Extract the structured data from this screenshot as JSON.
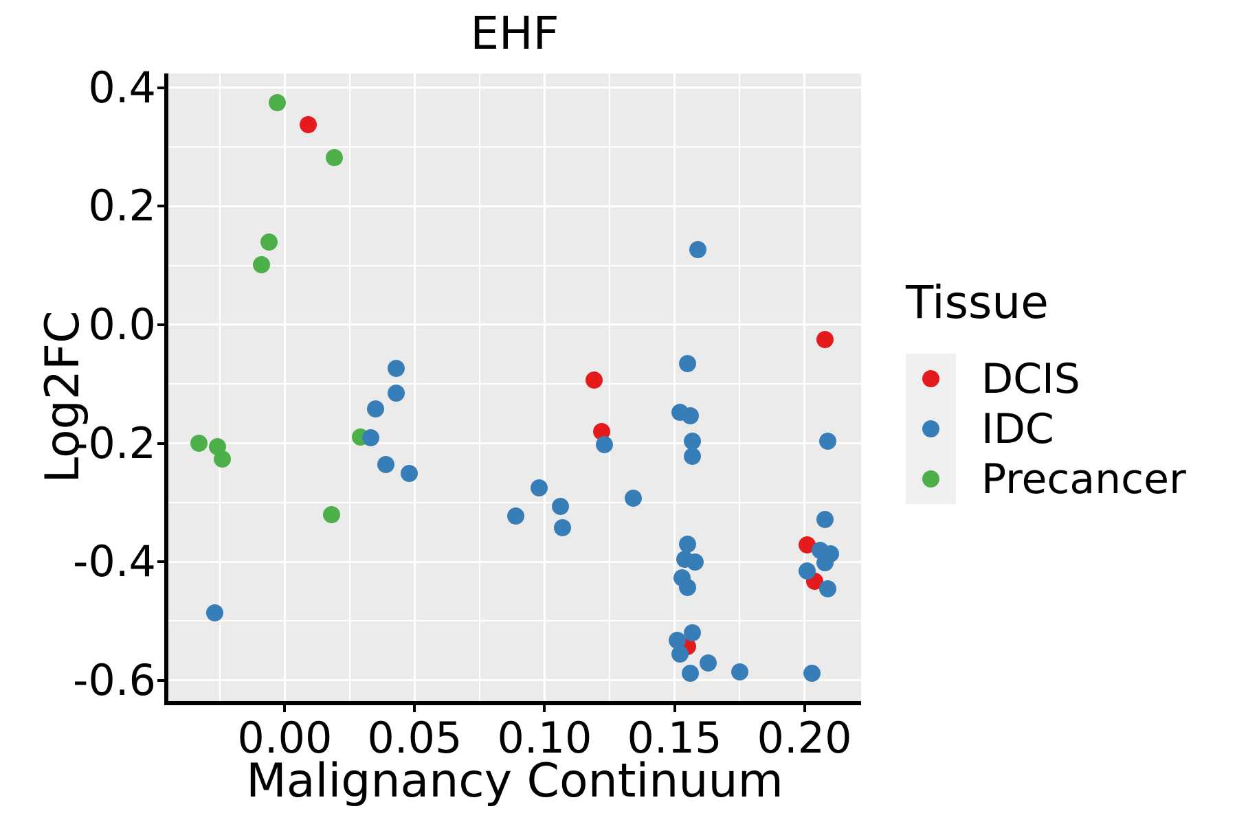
{
  "title": "EHF",
  "colors": {
    "background": "#FFFFFF",
    "panel_background": "#EBEBEB",
    "gridline": "#FFFFFF",
    "axis": "#000000",
    "text": "#000000",
    "legend_key_background": "#EFEFEF",
    "dcis": "#E41A1C",
    "idc": "#377EB8",
    "precancer": "#4DAF4A"
  },
  "legend": {
    "title": "Tissue",
    "entries": [
      {
        "label": "DCIS",
        "color": "#E41A1C"
      },
      {
        "label": "IDC",
        "color": "#377EB8"
      },
      {
        "label": "Precancer",
        "color": "#4DAF4A"
      }
    ]
  },
  "chart_data": {
    "type": "scatter",
    "title": "EHF",
    "xlabel": "Malignancy Continuum",
    "ylabel": "Log2FC",
    "xlim": [
      -0.0448,
      0.2218
    ],
    "ylim": [
      -0.635,
      0.424
    ],
    "grid": "on",
    "legend_position": "right",
    "x_major_ticks": [
      {
        "value": 0.0,
        "label": "0.00"
      },
      {
        "value": 0.05,
        "label": "0.05"
      },
      {
        "value": 0.1,
        "label": "0.10"
      },
      {
        "value": 0.15,
        "label": "0.15"
      },
      {
        "value": 0.2,
        "label": "0.20"
      }
    ],
    "y_major_ticks": [
      {
        "value": 0.4,
        "label": "0.4"
      },
      {
        "value": 0.2,
        "label": "0.2"
      },
      {
        "value": 0.0,
        "label": "0.0"
      },
      {
        "value": -0.2,
        "label": "-0.2"
      },
      {
        "value": -0.4,
        "label": "-0.4"
      },
      {
        "value": -0.6,
        "label": "-0.6"
      }
    ],
    "x_minor_gridlines": [
      -0.025,
      0.025,
      0.075,
      0.125,
      0.175
    ],
    "y_minor_gridlines": [
      0.3,
      0.1,
      -0.1,
      -0.3,
      -0.5
    ],
    "draw_order": [
      "Precancer",
      "DCIS",
      "IDC"
    ],
    "series": [
      {
        "name": "DCIS",
        "color": "#E41A1C",
        "points": [
          [
            0.009,
            0.338
          ],
          [
            0.119,
            -0.093
          ],
          [
            0.122,
            -0.18
          ],
          [
            0.208,
            -0.025
          ],
          [
            0.201,
            -0.371
          ],
          [
            0.204,
            -0.433
          ],
          [
            0.155,
            -0.543
          ]
        ]
      },
      {
        "name": "IDC",
        "color": "#377EB8",
        "points": [
          [
            -0.027,
            -0.486
          ],
          [
            0.033,
            -0.191
          ],
          [
            0.043,
            -0.074
          ],
          [
            0.043,
            -0.115
          ],
          [
            0.035,
            -0.142
          ],
          [
            0.039,
            -0.236
          ],
          [
            0.048,
            -0.251
          ],
          [
            0.089,
            -0.323
          ],
          [
            0.098,
            -0.275
          ],
          [
            0.106,
            -0.307
          ],
          [
            0.107,
            -0.343
          ],
          [
            0.123,
            -0.202
          ],
          [
            0.134,
            -0.293
          ],
          [
            0.159,
            0.127
          ],
          [
            0.155,
            -0.065
          ],
          [
            0.152,
            -0.148
          ],
          [
            0.156,
            -0.154
          ],
          [
            0.157,
            -0.196
          ],
          [
            0.157,
            -0.222
          ],
          [
            0.155,
            -0.37
          ],
          [
            0.154,
            -0.396
          ],
          [
            0.158,
            -0.4
          ],
          [
            0.153,
            -0.427
          ],
          [
            0.155,
            -0.443
          ],
          [
            0.157,
            -0.52
          ],
          [
            0.151,
            -0.532
          ],
          [
            0.152,
            -0.556
          ],
          [
            0.163,
            -0.571
          ],
          [
            0.156,
            -0.588
          ],
          [
            0.175,
            -0.586
          ],
          [
            0.209,
            -0.197
          ],
          [
            0.208,
            -0.329
          ],
          [
            0.206,
            -0.381
          ],
          [
            0.21,
            -0.387
          ],
          [
            0.208,
            -0.402
          ],
          [
            0.201,
            -0.416
          ],
          [
            0.209,
            -0.446
          ],
          [
            0.203,
            -0.588
          ]
        ]
      },
      {
        "name": "Precancer",
        "color": "#4DAF4A",
        "points": [
          [
            -0.003,
            0.375
          ],
          [
            0.019,
            0.282
          ],
          [
            -0.006,
            0.139
          ],
          [
            -0.009,
            0.101
          ],
          [
            -0.033,
            -0.2
          ],
          [
            -0.026,
            -0.206
          ],
          [
            -0.024,
            -0.226
          ],
          [
            0.029,
            -0.19
          ],
          [
            0.018,
            -0.32
          ]
        ]
      }
    ]
  }
}
